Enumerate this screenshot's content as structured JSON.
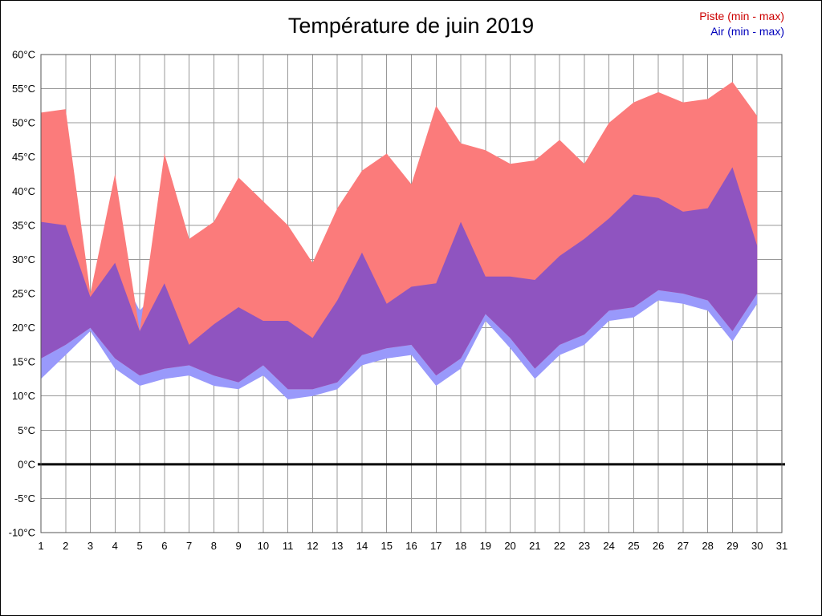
{
  "chart_data": {
    "type": "area",
    "title": "Température de juin 2019",
    "xlabel": "",
    "ylabel": "",
    "xlim": [
      1,
      31
    ],
    "ylim": [
      -10,
      60
    ],
    "grid": true,
    "zero_line": true,
    "y_unit": "°C",
    "xticks": [
      1,
      2,
      3,
      4,
      5,
      6,
      7,
      8,
      9,
      10,
      11,
      12,
      13,
      14,
      15,
      16,
      17,
      18,
      19,
      20,
      21,
      22,
      23,
      24,
      25,
      26,
      27,
      28,
      29,
      30,
      31
    ],
    "yticks": [
      -10,
      -5,
      0,
      5,
      10,
      15,
      20,
      25,
      30,
      35,
      40,
      45,
      50,
      55,
      60
    ],
    "x": [
      1,
      2,
      3,
      4,
      5,
      6,
      7,
      8,
      9,
      10,
      11,
      12,
      13,
      14,
      15,
      16,
      17,
      18,
      19,
      20,
      21,
      22,
      23,
      24,
      25,
      26,
      27,
      28,
      29,
      30
    ],
    "series": [
      {
        "name": "Piste (min - max)",
        "legend_color": "#cc0000",
        "fill": "#FB7B7B",
        "max": [
          51.5,
          52,
          25,
          42.5,
          19.5,
          45.5,
          33,
          35.5,
          42,
          38.5,
          35,
          29.5,
          37.5,
          43,
          45.5,
          41,
          52.5,
          47,
          46,
          44,
          44.5,
          47.5,
          44,
          50,
          53,
          54.5,
          53,
          53.5,
          56,
          51
        ],
        "min": [
          15.5,
          17.5,
          20,
          15.5,
          13,
          14,
          14.5,
          13,
          12,
          14.5,
          11,
          11,
          12,
          16,
          17,
          17.5,
          13,
          15.5,
          22,
          18.5,
          14,
          17.5,
          19,
          22.5,
          23,
          25.5,
          25,
          24,
          19.5,
          25
        ]
      },
      {
        "name": "Air (min - max)",
        "legend_color": "#0000bb",
        "fill": "#9999FB",
        "max": [
          35.5,
          35,
          24.5,
          29.5,
          22.5,
          26.5,
          17.5,
          20.5,
          23,
          21,
          21,
          18.5,
          24,
          31,
          23.5,
          26,
          26.5,
          35.5,
          27.5,
          27.5,
          27,
          30.5,
          33,
          36,
          39.5,
          39,
          37,
          37.5,
          43.5,
          32
        ],
        "min": [
          12.5,
          16,
          19.5,
          14,
          11.5,
          12.5,
          13,
          11.5,
          11,
          13,
          9.5,
          10,
          11,
          14.5,
          15.5,
          16,
          11.5,
          14,
          21,
          17,
          12.5,
          16,
          17.5,
          21,
          21.5,
          24,
          23.5,
          22.5,
          18,
          23.5
        ]
      }
    ],
    "colors": {
      "overlap_fill": "#8F54C0",
      "grid": "#999999",
      "frame": "#555555",
      "zero_line": "#000000",
      "tick_text": "#000000"
    }
  }
}
